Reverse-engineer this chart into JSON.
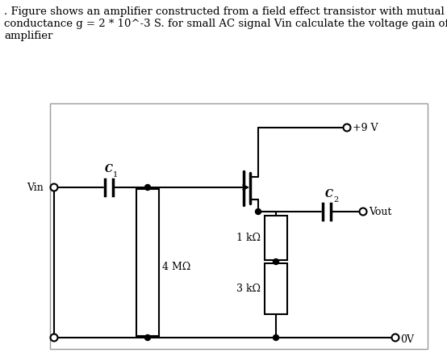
{
  "title_line1": ". Figure shows an amplifier constructed from a field effect transistor with mutual",
  "title_line2": "conductance g = 2 * 10^-3 S. for small AC signal Vin calculate the voltage gain of",
  "title_line3": "amplifier",
  "title_fontsize": 9.5,
  "bg_color": "#ffffff",
  "label_Vin": "Vin",
  "label_Vout": "Vout",
  "label_9V": "+9 V",
  "label_0V": "0V",
  "label_C1": "C",
  "label_C1_sub": "1",
  "label_C2": "C",
  "label_C2_sub": "2",
  "label_4M": "4 MΩ",
  "label_1k": "1 kΩ",
  "label_3k": "3 kΩ"
}
